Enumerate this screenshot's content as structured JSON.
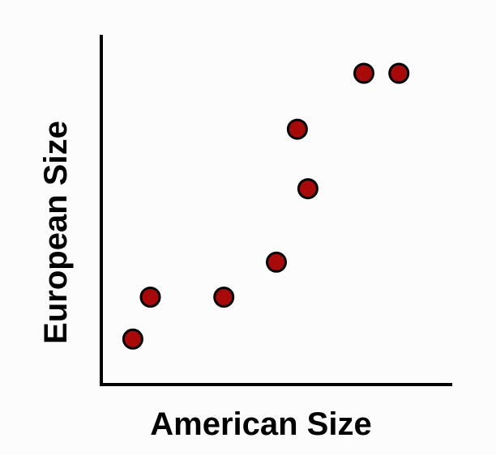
{
  "chart_data": {
    "type": "scatter",
    "title": "",
    "xlabel": "American Size",
    "ylabel": "European Size",
    "xlim": [
      0,
      100
    ],
    "ylim": [
      0,
      100
    ],
    "grid": false,
    "legend": "none",
    "x_tick_labels": [],
    "y_tick_labels": [],
    "series": [
      {
        "points": [
          {
            "x": 9,
            "y": 13
          },
          {
            "x": 14,
            "y": 25
          },
          {
            "x": 35,
            "y": 25
          },
          {
            "x": 50,
            "y": 35
          },
          {
            "x": 56,
            "y": 73
          },
          {
            "x": 59,
            "y": 56
          },
          {
            "x": 75,
            "y": 89
          },
          {
            "x": 85,
            "y": 89
          }
        ]
      }
    ],
    "colors": {
      "marker_fill": "#a80a0a",
      "marker_stroke": "#000000",
      "axis": "#000000"
    }
  }
}
